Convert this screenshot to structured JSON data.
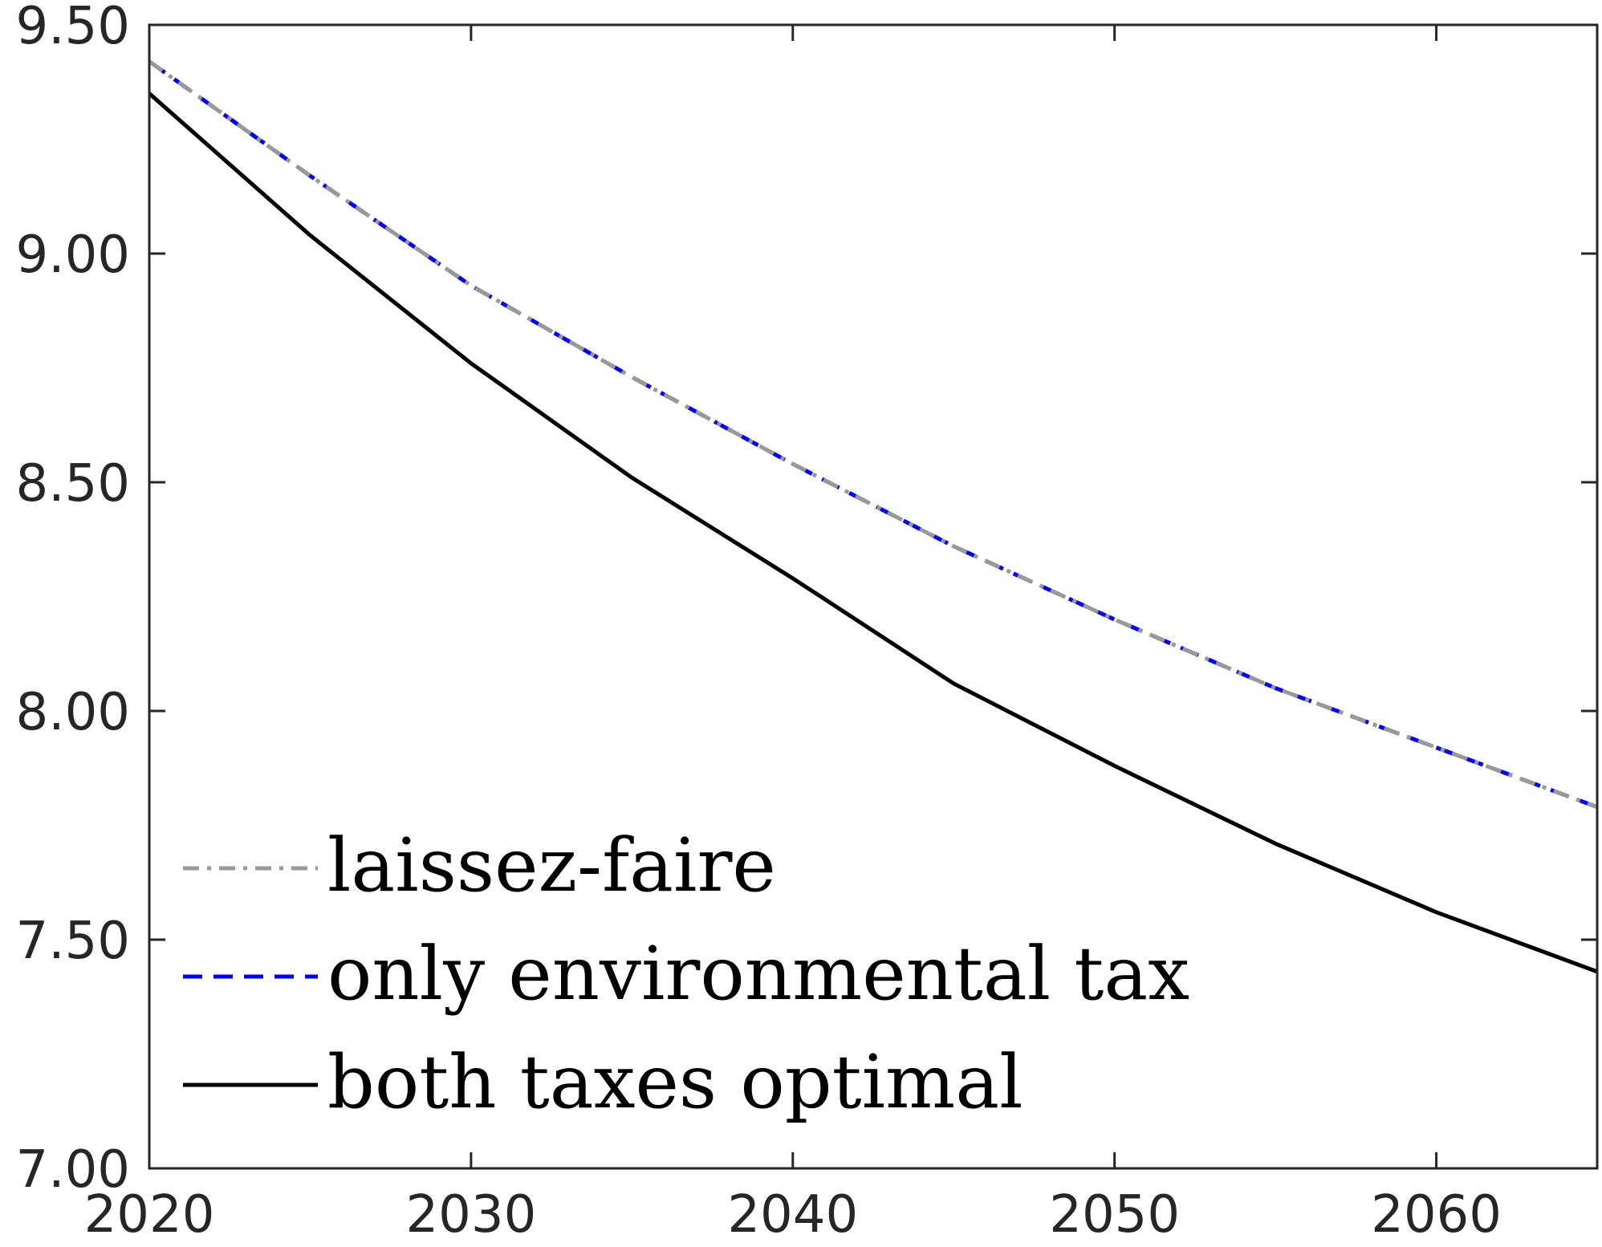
{
  "chart_data": {
    "type": "line",
    "title": "",
    "xlabel": "",
    "ylabel": "",
    "xlim": [
      2020,
      2065
    ],
    "ylim": [
      7.0,
      9.5
    ],
    "xticks": [
      2020,
      2030,
      2040,
      2050,
      2060
    ],
    "xtick_labels": [
      "2020",
      "2030",
      "2040",
      "2050",
      "2060"
    ],
    "yticks": [
      7.0,
      7.5,
      8.0,
      8.5,
      9.0,
      9.5
    ],
    "ytick_labels": [
      "7.00",
      "7.50",
      "8.00",
      "8.50",
      "9.00",
      "9.50"
    ],
    "grid": false,
    "legend_position": "bottom-left",
    "x": [
      2020,
      2025,
      2030,
      2035,
      2040,
      2045,
      2050,
      2055,
      2060,
      2065
    ],
    "series": [
      {
        "name": "laissez-faire",
        "color": "#999999",
        "dash": "dash-dot",
        "values": [
          9.42,
          9.17,
          8.93,
          8.73,
          8.54,
          8.36,
          8.2,
          8.05,
          7.92,
          7.79
        ]
      },
      {
        "name": "only environmental tax",
        "color": "#0000ff",
        "dash": "dashed",
        "values": [
          9.42,
          9.17,
          8.93,
          8.73,
          8.54,
          8.36,
          8.2,
          8.05,
          7.92,
          7.79
        ]
      },
      {
        "name": "both taxes optimal",
        "color": "#000000",
        "dash": "solid",
        "values": [
          9.35,
          9.04,
          8.76,
          8.51,
          8.29,
          8.06,
          7.88,
          7.71,
          7.56,
          7.43
        ]
      }
    ]
  }
}
